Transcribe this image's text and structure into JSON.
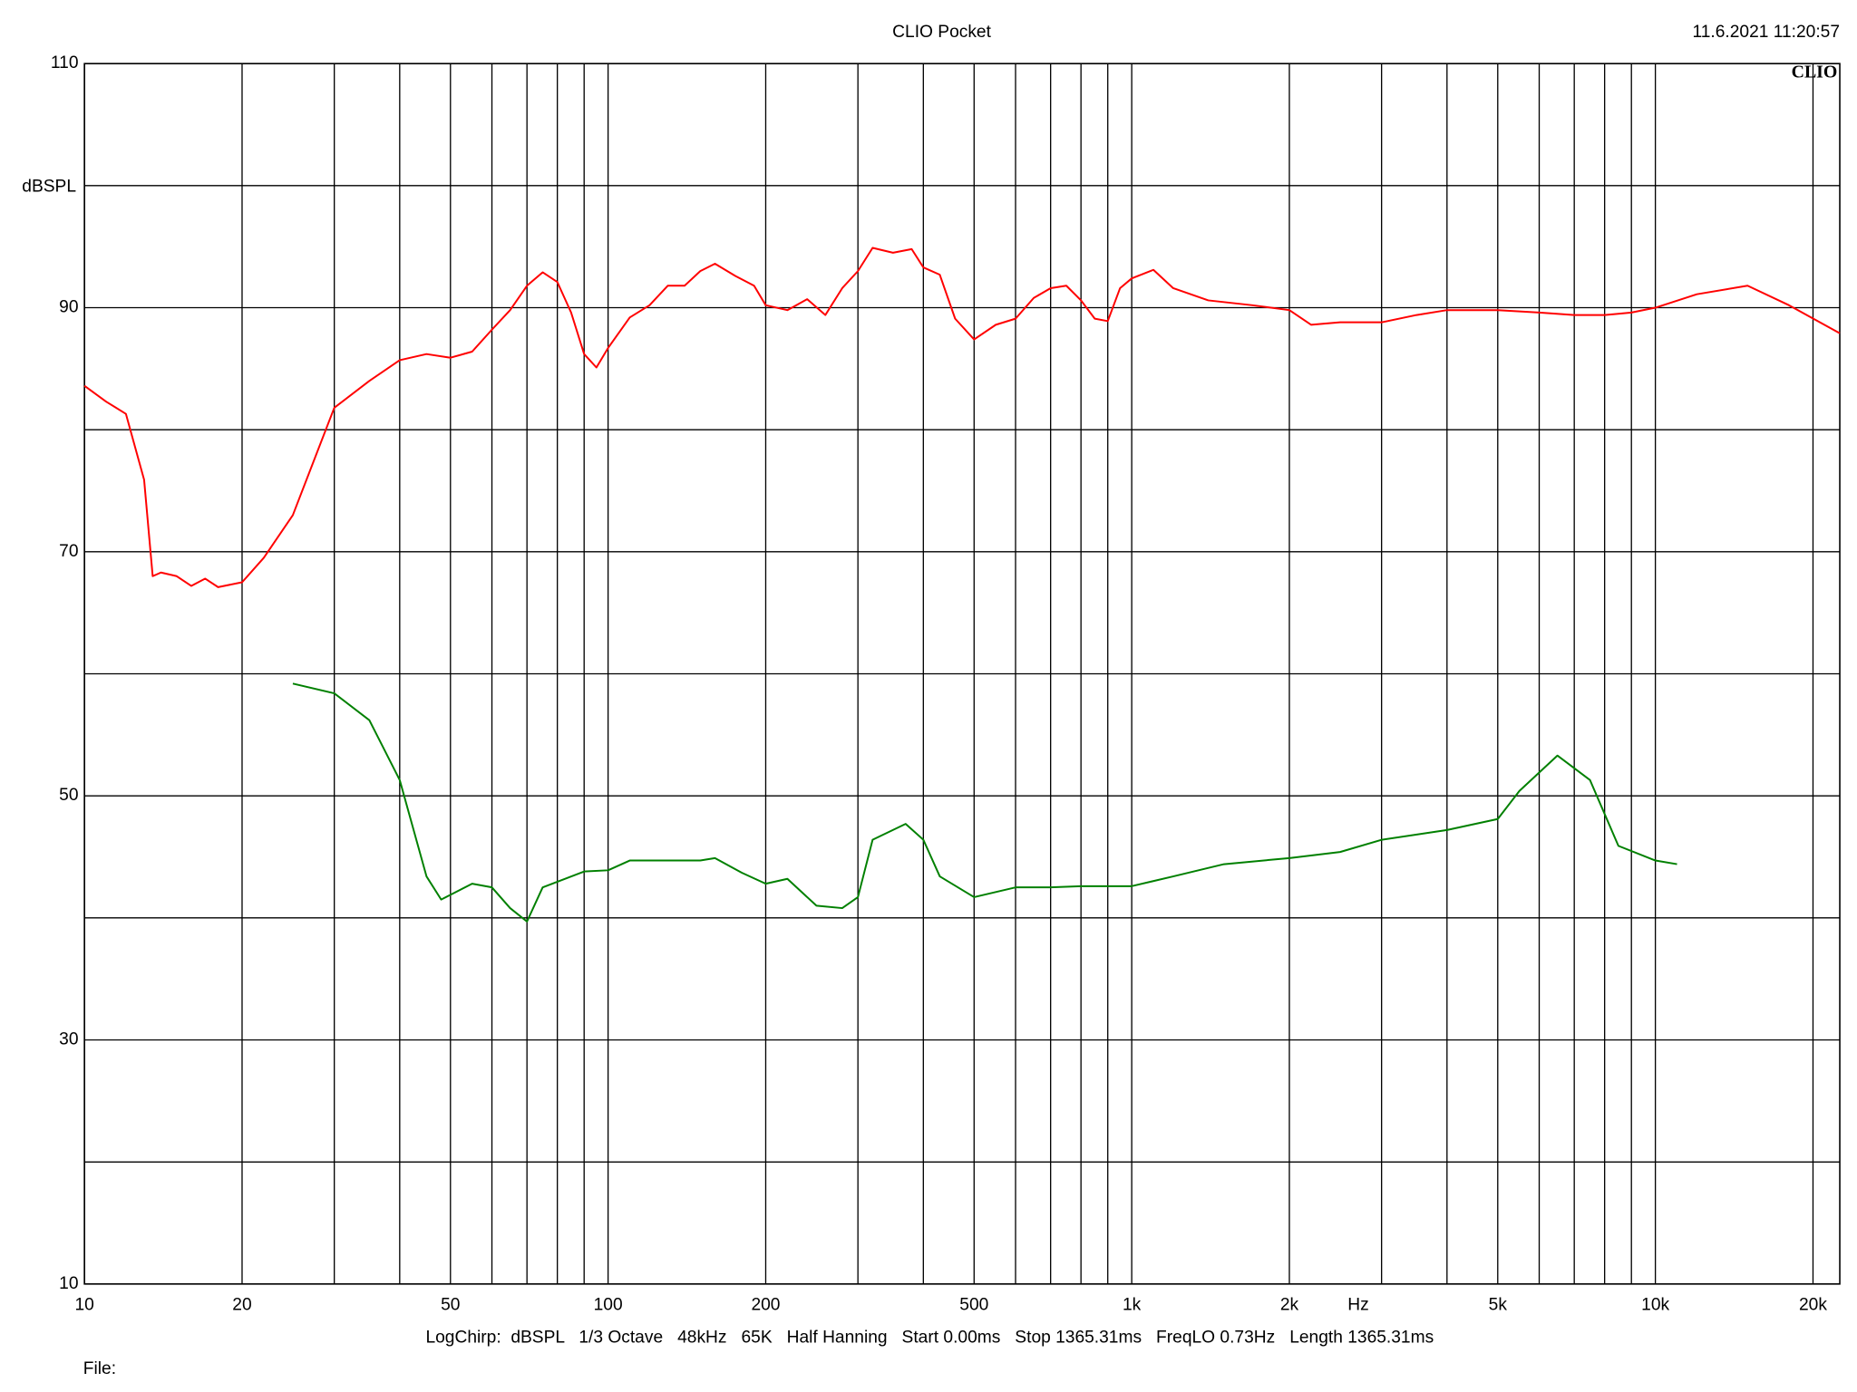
{
  "chart_data": {
    "type": "line",
    "title": "CLIO Pocket",
    "timestamp": "11.6.2021 11:20:57",
    "logo": "CLIO",
    "y_label": "dBSPL",
    "x_label": "Hz",
    "footer": "LogChirp:  dBSPL   1/3 Octave   48kHz   65K   Half Hanning   Start 0.00ms   Stop 1365.31ms   FreqLO 0.73Hz   Length 1365.31ms",
    "file_label": "File:",
    "x_scale": "log",
    "grid": true,
    "xlim": [
      10,
      22500
    ],
    "ylim": [
      10,
      110
    ],
    "xticks": [
      10,
      20,
      50,
      100,
      200,
      500,
      {
        "value": 1000,
        "label": "1k"
      },
      {
        "value": 2000,
        "label": "2k"
      },
      {
        "value": 5000,
        "label": "5k"
      },
      {
        "value": 10000,
        "label": "10k"
      },
      {
        "value": 20000,
        "label": "20k"
      }
    ],
    "xminor": [
      30,
      40,
      60,
      70,
      80,
      90,
      300,
      400,
      600,
      700,
      800,
      900,
      3000,
      4000,
      6000,
      7000,
      8000,
      9000
    ],
    "yticks": [
      10,
      30,
      50,
      70,
      90,
      110
    ],
    "yminor": [
      20,
      40,
      60,
      80,
      100
    ],
    "series": [
      {
        "color": "#ff0000",
        "x": [
          10,
          11,
          12,
          13,
          13.5,
          14,
          15,
          16,
          17,
          18,
          20,
          22,
          25,
          30,
          35,
          40,
          45,
          50,
          55,
          60,
          65,
          70,
          75,
          80,
          85,
          90,
          95,
          100,
          110,
          120,
          130,
          140,
          150,
          160,
          175,
          190,
          200,
          220,
          240,
          260,
          280,
          300,
          320,
          350,
          380,
          400,
          430,
          460,
          500,
          550,
          600,
          650,
          700,
          750,
          800,
          850,
          900,
          950,
          1000,
          1100,
          1200,
          1400,
          1700,
          2000,
          2200,
          2500,
          3000,
          3500,
          4000,
          5000,
          6000,
          7000,
          8000,
          9000,
          10000,
          12000,
          15000,
          18000,
          22500
        ],
        "values": [
          83.6,
          82.3,
          81.3,
          75.9,
          68,
          68.3,
          68,
          67.2,
          67.8,
          67.1,
          67.5,
          69.5,
          73,
          81.8,
          84,
          85.7,
          86.2,
          85.9,
          86.4,
          88.2,
          89.8,
          91.8,
          92.9,
          92.1,
          89.6,
          86.2,
          85.1,
          86.7,
          89.2,
          90.2,
          91.8,
          91.8,
          93,
          93.6,
          92.6,
          91.8,
          90.2,
          89.8,
          90.7,
          89.4,
          91.6,
          93,
          94.9,
          94.5,
          94.8,
          93.3,
          92.7,
          89.1,
          87.4,
          88.6,
          89.1,
          90.8,
          91.6,
          91.8,
          90.6,
          89.1,
          88.9,
          91.6,
          92.4,
          93.1,
          91.6,
          90.6,
          90.2,
          89.8,
          88.6,
          88.8,
          88.8,
          89.4,
          89.8,
          89.8,
          89.6,
          89.4,
          89.4,
          89.6,
          90,
          91.1,
          91.8,
          90.2,
          87.9
        ]
      },
      {
        "color": "#008000",
        "x": [
          25,
          30,
          35,
          40,
          45,
          48,
          55,
          60,
          65,
          70,
          75,
          90,
          100,
          110,
          130,
          150,
          160,
          180,
          200,
          220,
          250,
          280,
          300,
          320,
          370,
          400,
          430,
          500,
          600,
          700,
          800,
          1000,
          1200,
          1500,
          2000,
          2500,
          3000,
          4000,
          5000,
          5500,
          6500,
          7500,
          8500,
          10000,
          11000
        ],
        "values": [
          59.2,
          58.4,
          56.2,
          51.3,
          43.4,
          41.5,
          42.8,
          42.5,
          40.8,
          39.7,
          42.5,
          43.8,
          43.9,
          44.7,
          44.7,
          44.7,
          44.9,
          43.7,
          42.8,
          43.2,
          41,
          40.8,
          41.7,
          46.4,
          47.7,
          46.4,
          43.4,
          41.7,
          42.5,
          42.5,
          42.6,
          42.6,
          43.4,
          44.4,
          44.9,
          45.4,
          46.4,
          47.2,
          48.1,
          50.4,
          53.3,
          51.3,
          45.9,
          44.7,
          44.4
        ]
      }
    ]
  }
}
